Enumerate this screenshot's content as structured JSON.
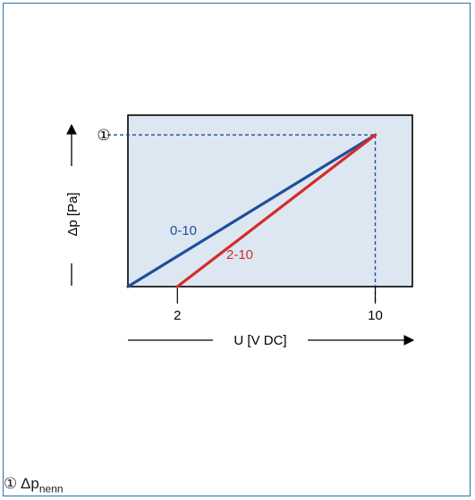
{
  "chart_data": {
    "type": "line",
    "xlabel": "U [V DC]",
    "ylabel": "Δp [Pa]",
    "x_ticks": [
      "2",
      "10"
    ],
    "y_ticks": [
      "①"
    ],
    "xlim": [
      0,
      11.5
    ],
    "ylim": [
      0,
      1.13
    ],
    "series": [
      {
        "name": "0-10",
        "x": [
          0,
          10
        ],
        "y": [
          0,
          1
        ],
        "color": "#1e4f9a"
      },
      {
        "name": "2-10",
        "x": [
          2,
          10
        ],
        "y": [
          0,
          1
        ],
        "color": "#d42b2b"
      }
    ],
    "reference_lines": {
      "x": 10,
      "y": 1,
      "style": "dashed",
      "color": "#1e4f9a"
    },
    "plot_background": "#dde7f1"
  },
  "footnote": {
    "marker": "①",
    "symbol": "Δp",
    "subscript": "nenn"
  }
}
